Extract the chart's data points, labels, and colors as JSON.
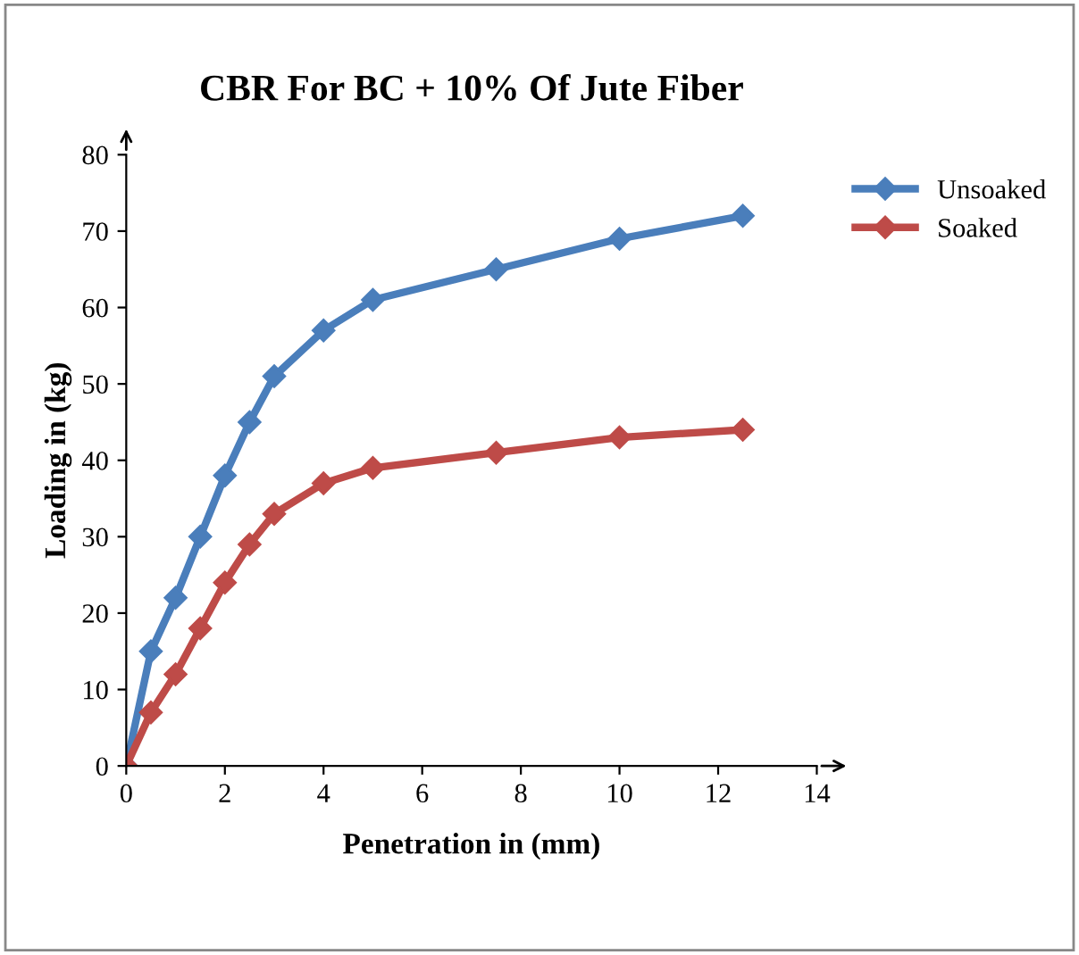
{
  "chart_data": {
    "type": "line",
    "title": "CBR For BC + 10% Of Jute Fiber",
    "xlabel": "Penetration in (mm)",
    "ylabel": "Loading in (kg)",
    "x": [
      0,
      0.5,
      1,
      1.5,
      2,
      2.5,
      3,
      4,
      5,
      7.5,
      10,
      12.5
    ],
    "series": [
      {
        "name": "Unsoaked",
        "color": "#4a7ebb",
        "marker": "diamond",
        "values": [
          0,
          15,
          22,
          30,
          38,
          45,
          51,
          57,
          61,
          65,
          69,
          72
        ]
      },
      {
        "name": "Soaked",
        "color": "#be4b48",
        "marker": "diamond",
        "values": [
          0,
          7,
          12,
          18,
          24,
          29,
          33,
          37,
          39,
          41,
          43,
          44
        ]
      }
    ],
    "xlim": [
      0,
      14
    ],
    "ylim": [
      0,
      80
    ],
    "xticks": [
      0,
      2,
      4,
      6,
      8,
      10,
      12,
      14
    ],
    "yticks": [
      0,
      10,
      20,
      30,
      40,
      50,
      60,
      70,
      80
    ],
    "grid": false,
    "legend": "top right",
    "line_style": "solid"
  }
}
